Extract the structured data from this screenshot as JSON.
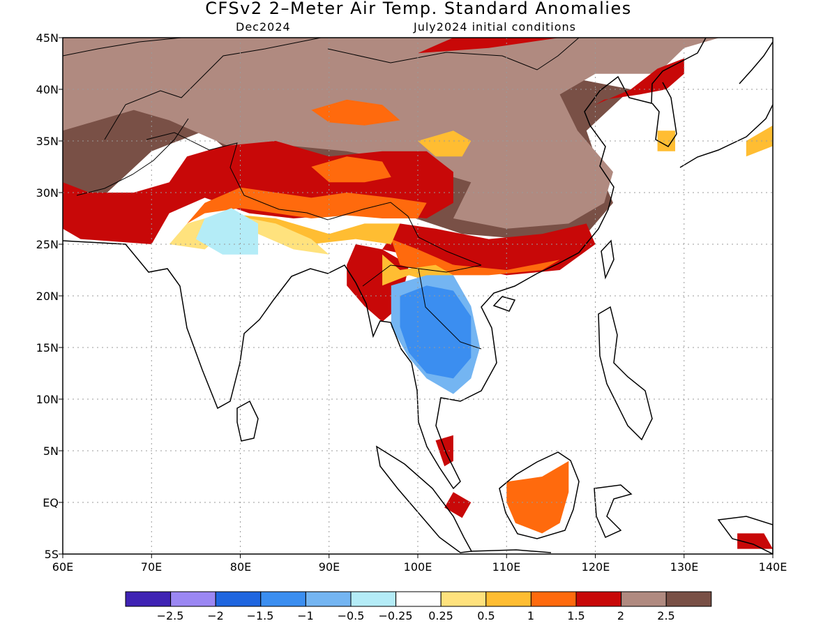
{
  "title": "CFSv2 2–Meter Air Temp. Standard Anomalies",
  "subtitle_left": "Dec2024",
  "subtitle_right": "July2024 initial conditions",
  "lat_labels": [
    "45N",
    "40N",
    "35N",
    "30N",
    "25N",
    "20N",
    "15N",
    "10N",
    "5N",
    "EQ",
    "5S"
  ],
  "lon_labels": [
    "60E",
    "70E",
    "80E",
    "90E",
    "100E",
    "110E",
    "120E",
    "130E",
    "140E"
  ],
  "colorbar": {
    "colors": [
      "#3f23b4",
      "#9b87f3",
      "#1f66e0",
      "#3b8ef0",
      "#74b5f2",
      "#b4ecf7",
      "#ffffff",
      "#ffe27d",
      "#ffbd32",
      "#ff6a0d",
      "#c80808",
      "#b08a80",
      "#795046"
    ],
    "labels": [
      "−2.5",
      "−2",
      "−1.5",
      "−1",
      "−0.5",
      "−0.25",
      "0.25",
      "0.5",
      "1",
      "1.5",
      "2",
      "2.5"
    ]
  },
  "regions": [
    {
      "c": "#795046",
      "pts": [
        [
          60,
          45
        ],
        [
          118,
          45
        ],
        [
          118,
          41
        ],
        [
          124,
          40
        ],
        [
          119,
          36
        ],
        [
          121,
          31
        ],
        [
          122,
          29
        ],
        [
          119,
          26
        ],
        [
          112,
          25.5
        ],
        [
          105,
          26
        ],
        [
          98,
          28
        ],
        [
          90,
          29
        ],
        [
          80,
          33
        ],
        [
          76,
          36
        ],
        [
          70,
          34
        ],
        [
          65,
          30
        ],
        [
          60,
          27
        ]
      ]
    },
    {
      "c": "#b08a80",
      "pts": [
        [
          60,
          36
        ],
        [
          64,
          37
        ],
        [
          68,
          38
        ],
        [
          72,
          37
        ],
        [
          76,
          35.5
        ],
        [
          80,
          34
        ],
        [
          86,
          34.5
        ],
        [
          92,
          34
        ],
        [
          98,
          33
        ],
        [
          102,
          32
        ],
        [
          106,
          31
        ],
        [
          104,
          27.5
        ],
        [
          110,
          26.5
        ],
        [
          117,
          27
        ],
        [
          121,
          29
        ],
        [
          122,
          32
        ],
        [
          118,
          36
        ],
        [
          116,
          39.5
        ],
        [
          120,
          41.5
        ],
        [
          127,
          41.5
        ],
        [
          130,
          44
        ],
        [
          134,
          45
        ],
        [
          60,
          45
        ]
      ]
    },
    {
      "c": "#b08a80",
      "pts": [
        [
          95,
          42
        ],
        [
          100,
          41
        ],
        [
          106,
          39
        ],
        [
          109,
          38
        ],
        [
          105,
          36.5
        ],
        [
          99,
          37.5
        ],
        [
          95,
          39.5
        ]
      ]
    },
    {
      "c": "#c80808",
      "pts": [
        [
          60,
          31
        ],
        [
          63,
          30
        ],
        [
          68,
          30
        ],
        [
          72,
          31
        ],
        [
          74,
          33.5
        ],
        [
          78,
          34.5
        ],
        [
          84,
          35
        ],
        [
          90,
          33.5
        ],
        [
          96,
          34
        ],
        [
          101,
          34
        ],
        [
          104,
          32
        ],
        [
          104,
          29
        ],
        [
          101,
          27.5
        ],
        [
          94,
          28
        ],
        [
          86,
          27.5
        ],
        [
          81,
          28
        ],
        [
          76,
          29.5
        ],
        [
          72,
          28
        ],
        [
          70,
          25
        ],
        [
          62,
          25.5
        ],
        [
          60,
          26.5
        ]
      ]
    },
    {
      "c": "#c80808",
      "pts": [
        [
          96,
          24.5
        ],
        [
          104,
          23
        ],
        [
          110,
          22
        ],
        [
          116,
          22.5
        ],
        [
          120,
          25
        ],
        [
          119,
          27
        ],
        [
          114,
          26
        ],
        [
          108,
          25.5
        ],
        [
          102,
          26.5
        ],
        [
          98,
          27
        ]
      ]
    },
    {
      "c": "#c80808",
      "pts": [
        [
          120,
          38.5
        ],
        [
          124,
          40
        ],
        [
          127,
          42
        ],
        [
          130,
          43
        ],
        [
          130,
          41.5
        ],
        [
          128,
          40
        ],
        [
          125,
          39.5
        ],
        [
          121,
          39
        ]
      ]
    },
    {
      "c": "#c80808",
      "pts": [
        [
          100,
          43.5
        ],
        [
          108,
          44
        ],
        [
          116,
          45
        ],
        [
          112,
          45
        ],
        [
          104,
          45
        ]
      ]
    },
    {
      "c": "#c80808",
      "pts": [
        [
          93,
          25
        ],
        [
          96,
          24.5
        ],
        [
          99,
          23
        ],
        [
          98,
          19
        ],
        [
          96,
          17.5
        ],
        [
          94,
          19
        ],
        [
          92,
          21
        ],
        [
          92,
          23
        ]
      ]
    },
    {
      "c": "#ff6a0d",
      "pts": [
        [
          74,
          27
        ],
        [
          76,
          29
        ],
        [
          80,
          30.5
        ],
        [
          84,
          30
        ],
        [
          88,
          29.5
        ],
        [
          92,
          30
        ],
        [
          97,
          29.5
        ],
        [
          101,
          29
        ],
        [
          100,
          27.5
        ],
        [
          96,
          27.5
        ],
        [
          92,
          27.8
        ],
        [
          88,
          27.5
        ],
        [
          84,
          28
        ],
        [
          80,
          28.5
        ],
        [
          76,
          28
        ]
      ]
    },
    {
      "c": "#ff6a0d",
      "pts": [
        [
          88,
          32.5
        ],
        [
          92,
          33.5
        ],
        [
          96,
          33
        ],
        [
          97,
          31.5
        ],
        [
          94,
          31
        ],
        [
          90,
          31
        ]
      ]
    },
    {
      "c": "#ff6a0d",
      "pts": [
        [
          97,
          25.5
        ],
        [
          100,
          24.5
        ],
        [
          104,
          23
        ],
        [
          110,
          22.5
        ],
        [
          116,
          23.5
        ],
        [
          114,
          22.5
        ],
        [
          108,
          22
        ],
        [
          102,
          22
        ],
        [
          98,
          23
        ]
      ]
    },
    {
      "c": "#ff6a0d",
      "pts": [
        [
          88,
          38
        ],
        [
          92,
          39
        ],
        [
          96,
          38.5
        ],
        [
          98,
          37
        ],
        [
          94,
          36.5
        ],
        [
          90,
          36.8
        ]
      ]
    },
    {
      "c": "#ff6a0d",
      "pts": [
        [
          110,
          2
        ],
        [
          114,
          2.5
        ],
        [
          117,
          4
        ],
        [
          117,
          1
        ],
        [
          116,
          -2
        ],
        [
          114,
          -3
        ],
        [
          111,
          -2
        ],
        [
          110,
          0
        ]
      ]
    },
    {
      "c": "#ffbd32",
      "pts": [
        [
          75,
          26.5
        ],
        [
          78,
          28
        ],
        [
          84,
          27.5
        ],
        [
          90,
          26
        ],
        [
          94,
          27
        ],
        [
          98,
          27
        ],
        [
          97,
          25
        ],
        [
          93,
          25.5
        ],
        [
          88,
          25
        ],
        [
          83,
          27
        ],
        [
          78,
          26
        ],
        [
          76,
          25
        ]
      ]
    },
    {
      "c": "#ffbd32",
      "pts": [
        [
          96,
          24
        ],
        [
          98,
          22.5
        ],
        [
          102,
          23
        ],
        [
          104,
          22
        ],
        [
          103,
          21
        ],
        [
          99,
          22
        ],
        [
          96,
          21
        ]
      ]
    },
    {
      "c": "#ffbd32",
      "pts": [
        [
          100,
          35
        ],
        [
          104,
          36
        ],
        [
          106,
          35
        ],
        [
          105,
          33.5
        ],
        [
          102,
          33.5
        ]
      ]
    },
    {
      "c": "#ffe27d",
      "pts": [
        [
          72,
          25
        ],
        [
          74,
          27
        ],
        [
          78,
          28
        ],
        [
          84,
          27
        ],
        [
          88,
          25.5
        ],
        [
          90,
          24
        ],
        [
          86,
          24.5
        ],
        [
          82,
          26
        ],
        [
          78,
          26
        ],
        [
          76,
          24.5
        ]
      ]
    },
    {
      "c": "#b4ecf7",
      "pts": [
        [
          76,
          27.5
        ],
        [
          79,
          28.5
        ],
        [
          82,
          27
        ],
        [
          82,
          24
        ],
        [
          78,
          24
        ],
        [
          75,
          25.5
        ]
      ]
    },
    {
      "c": "#74b5f2",
      "pts": [
        [
          97,
          21
        ],
        [
          101,
          22
        ],
        [
          104,
          22
        ],
        [
          106,
          19
        ],
        [
          107,
          15
        ],
        [
          106,
          12
        ],
        [
          104,
          10.5
        ],
        [
          101,
          12
        ],
        [
          99,
          14
        ],
        [
          97,
          17
        ]
      ]
    },
    {
      "c": "#3b8ef0",
      "pts": [
        [
          98,
          20
        ],
        [
          101,
          21
        ],
        [
          104,
          20.5
        ],
        [
          106,
          18
        ],
        [
          106,
          14
        ],
        [
          104,
          12
        ],
        [
          101,
          12.5
        ],
        [
          99,
          14.5
        ],
        [
          98,
          17
        ]
      ]
    },
    {
      "c": "#c80808",
      "pts": [
        [
          103,
          -0.5
        ],
        [
          104,
          1
        ],
        [
          106,
          0
        ],
        [
          105,
          -1.5
        ]
      ]
    },
    {
      "c": "#c80808",
      "pts": [
        [
          102,
          6
        ],
        [
          104,
          6.5
        ],
        [
          104,
          4
        ],
        [
          103,
          3.5
        ]
      ]
    },
    {
      "c": "#c80808",
      "pts": [
        [
          136,
          -3
        ],
        [
          139,
          -3
        ],
        [
          140,
          -4.5
        ],
        [
          136,
          -4.5
        ]
      ]
    },
    {
      "c": "#ffbd32",
      "pts": [
        [
          137,
          35
        ],
        [
          140,
          36.5
        ],
        [
          140,
          34.5
        ],
        [
          137,
          33.5
        ]
      ]
    },
    {
      "c": "#ffbd32",
      "pts": [
        [
          127,
          36
        ],
        [
          129,
          36
        ],
        [
          129,
          34
        ],
        [
          127,
          34
        ]
      ]
    }
  ]
}
